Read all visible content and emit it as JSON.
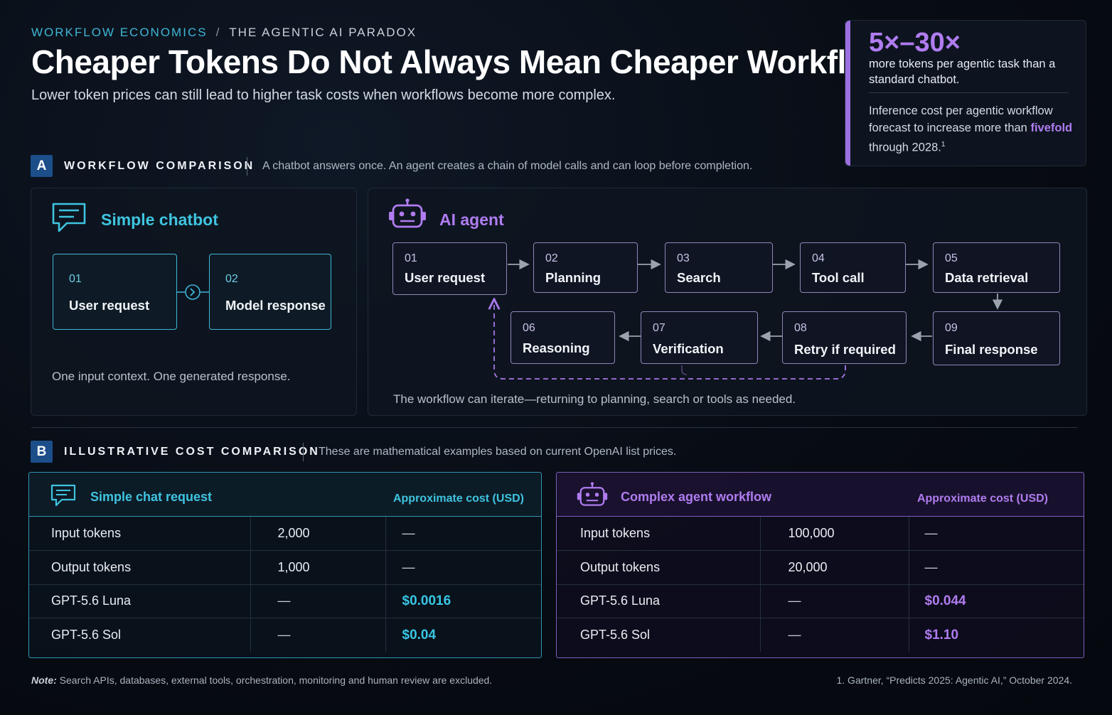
{
  "header": {
    "eyebrow_a": "WORKFLOW ECONOMICS",
    "eyebrow_sep": "/",
    "eyebrow_b": "THE AGENTIC AI PARADOX",
    "title": "Cheaper Tokens Do Not Always Mean Cheaper Workflows",
    "subtitle": "Lower token prices can still lead to higher task costs when workflows become more complex."
  },
  "stat": {
    "big": "5×–30×",
    "desc": "more tokens per agentic task than a standard chatbot.",
    "note_pre": "Inference cost per agentic workflow forecast to increase more than",
    "note_hl": "fivefold",
    "note_post": "through 2028.",
    "note_sup": "1"
  },
  "section_a": {
    "badge": "A",
    "title": "WORKFLOW COMPARISON",
    "desc": "A chatbot answers once. An agent creates a chain of model calls and can loop before completion."
  },
  "chatbot": {
    "title": "Simple chatbot",
    "steps": [
      {
        "num": "01",
        "label": "User request"
      },
      {
        "num": "02",
        "label": "Model response"
      }
    ],
    "caption": "One input context. One generated response."
  },
  "agent": {
    "title": "AI agent",
    "steps": [
      {
        "num": "01",
        "label": "User request"
      },
      {
        "num": "02",
        "label": "Planning"
      },
      {
        "num": "03",
        "label": "Search"
      },
      {
        "num": "04",
        "label": "Tool call"
      },
      {
        "num": "05",
        "label": "Data retrieval"
      },
      {
        "num": "06",
        "label": "Reasoning"
      },
      {
        "num": "07",
        "label": "Verification"
      },
      {
        "num": "08",
        "label": "Retry if required"
      },
      {
        "num": "09",
        "label": "Final response"
      }
    ],
    "caption": "The workflow can iterate—returning to planning, search or tools as needed."
  },
  "section_b": {
    "badge": "B",
    "title": "ILLUSTRATIVE COST COMPARISON",
    "desc": "These are mathematical examples based on current OpenAI list prices."
  },
  "table_chat": {
    "title": "Simple chat request",
    "cost_header": "Approximate cost (USD)",
    "rows": [
      {
        "label": "Input tokens",
        "value": "2,000",
        "cost": "—"
      },
      {
        "label": "Output tokens",
        "value": "1,000",
        "cost": "—"
      },
      {
        "label": "GPT-5.6 Luna",
        "value": "—",
        "cost": "$0.0016"
      },
      {
        "label": "GPT-5.6 Sol",
        "value": "—",
        "cost": "$0.04"
      }
    ]
  },
  "table_agent": {
    "title": "Complex agent workflow",
    "cost_header": "Approximate cost (USD)",
    "rows": [
      {
        "label": "Input tokens",
        "value": "100,000",
        "cost": "—"
      },
      {
        "label": "Output tokens",
        "value": "20,000",
        "cost": "—"
      },
      {
        "label": "GPT-5.6 Luna",
        "value": "—",
        "cost": "$0.044"
      },
      {
        "label": "GPT-5.6 Sol",
        "value": "—",
        "cost": "$1.10"
      }
    ]
  },
  "footer": {
    "note_label": "Note:",
    "note": "Search APIs, databases, external tools, orchestration, monitoring and human review are excluded.",
    "ref": "1. Gartner, “Predicts 2025: Agentic AI,” October 2024."
  },
  "colors": {
    "cyan": "#3fb6d6",
    "violet": "#b07cf0",
    "section_badge": "#1c4e8a",
    "background": "#070b12"
  }
}
